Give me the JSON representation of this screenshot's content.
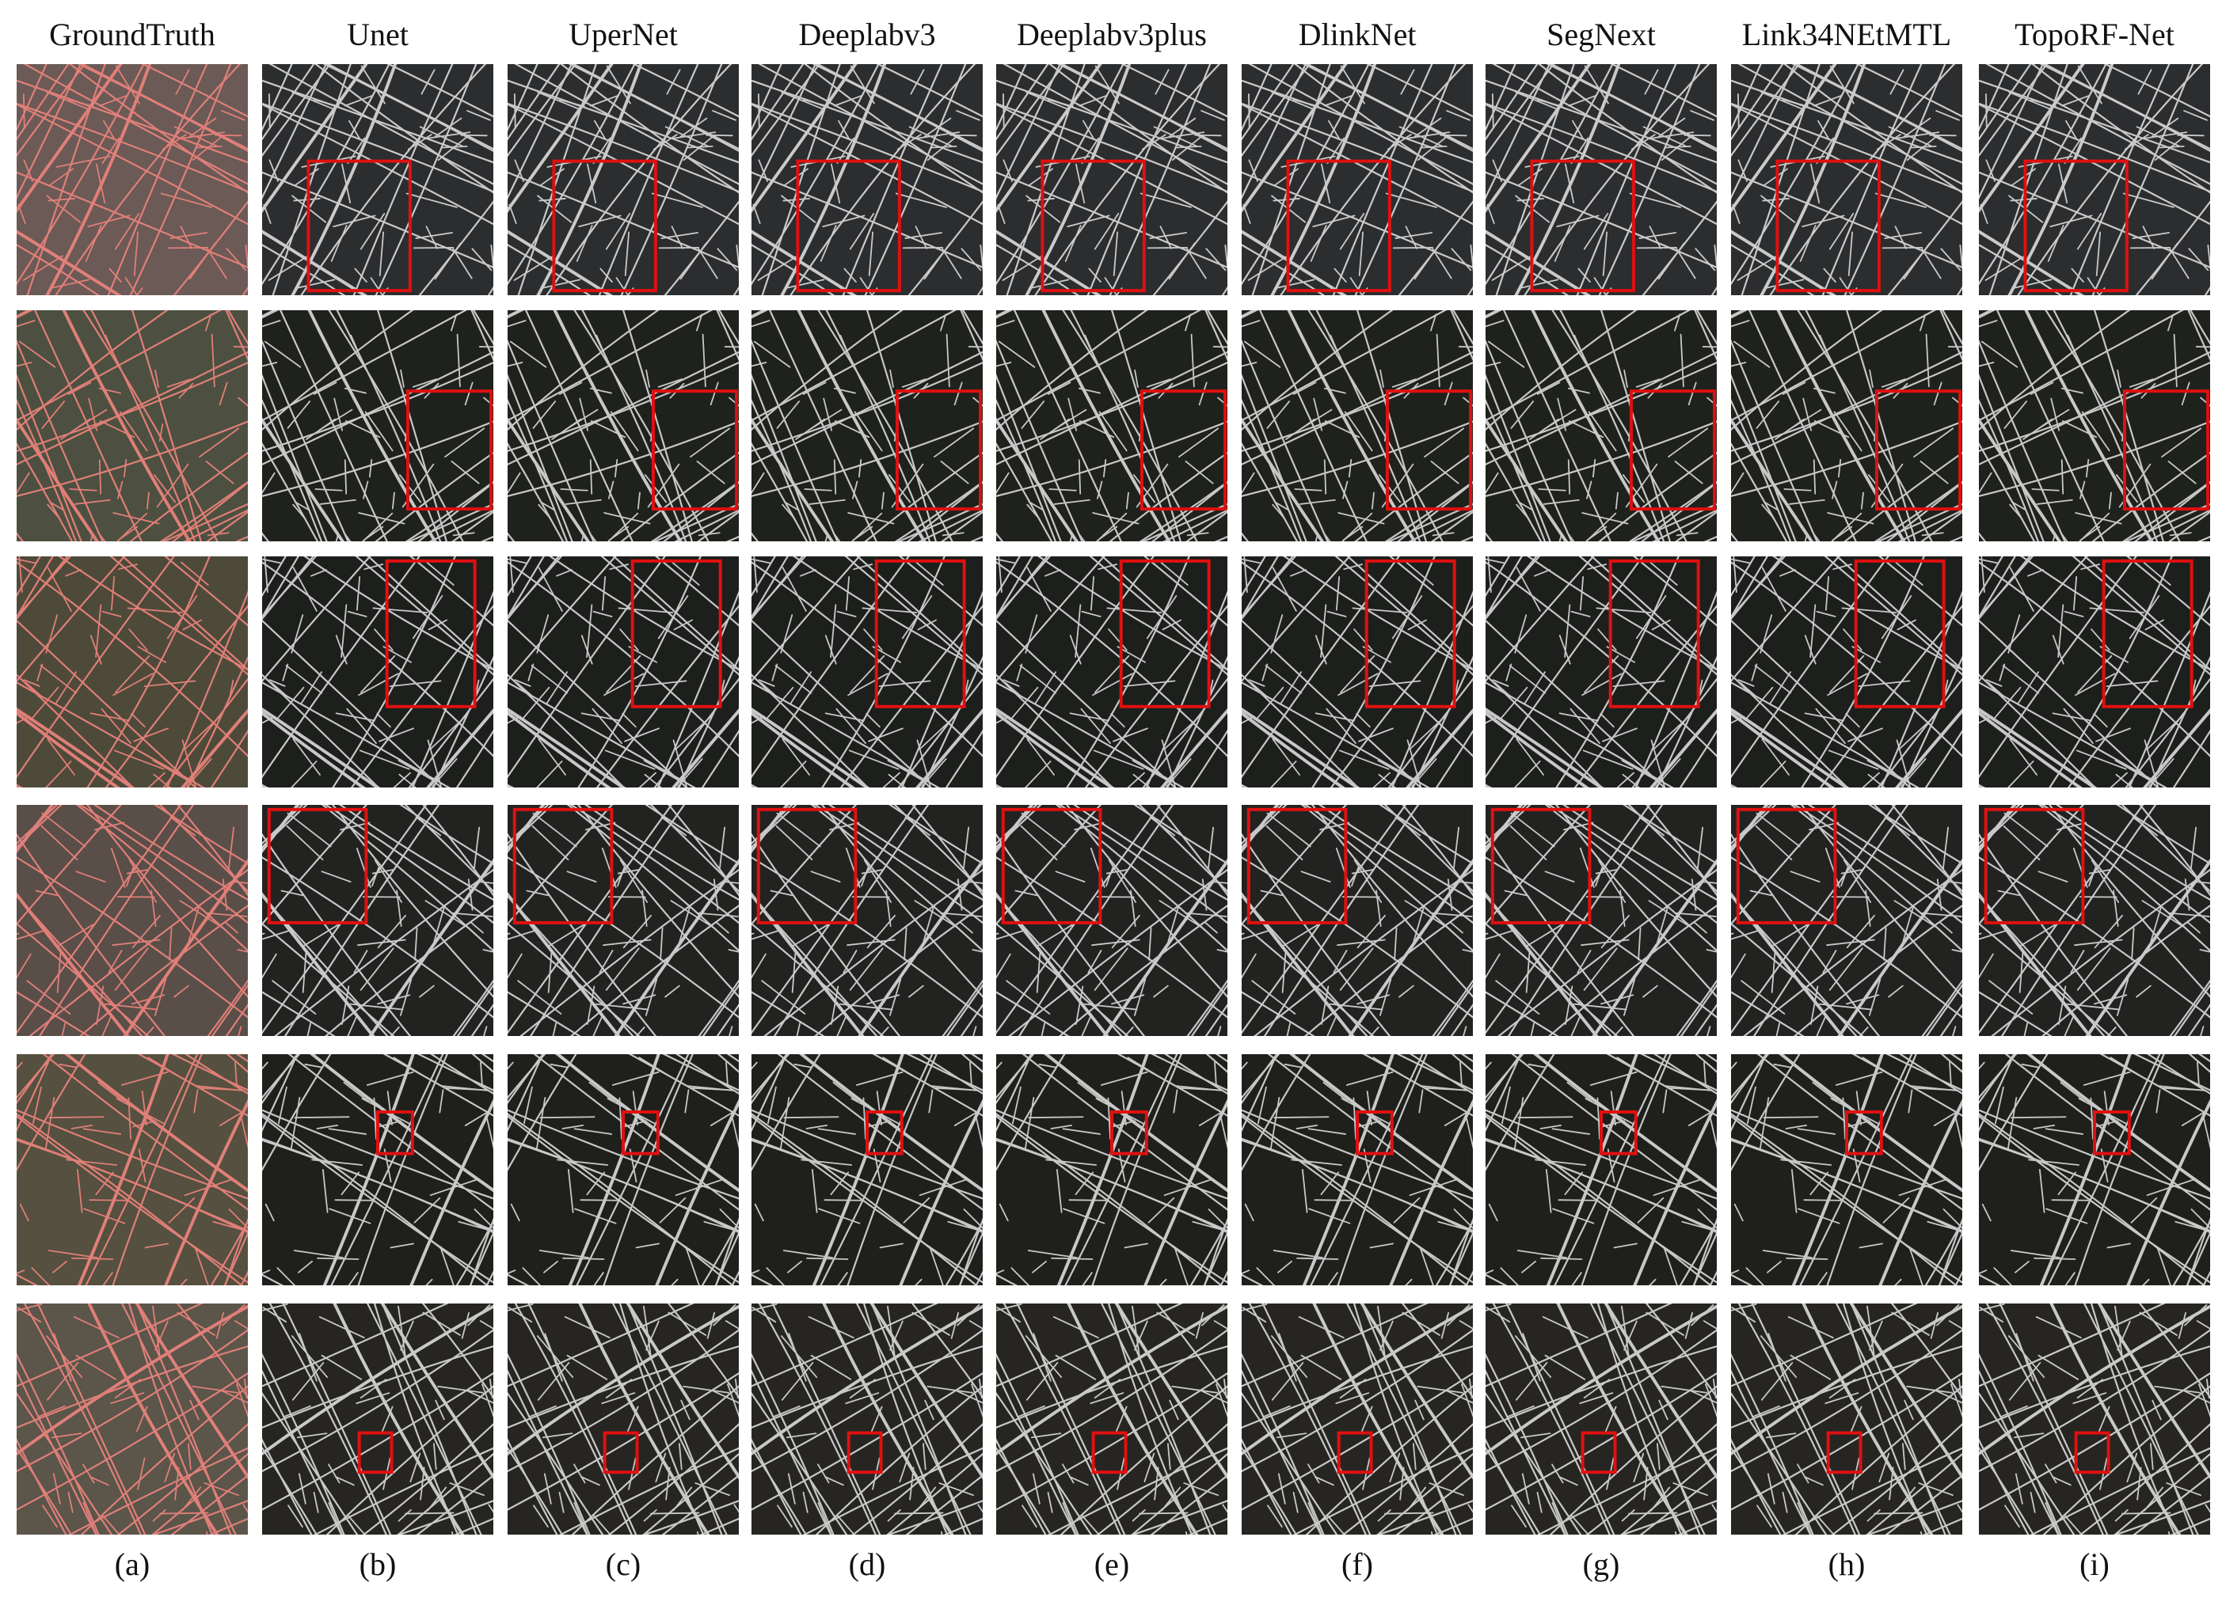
{
  "columns": [
    {
      "title": "GroundTruth",
      "label": "(a)"
    },
    {
      "title": "Unet",
      "label": "(b)"
    },
    {
      "title": "UperNet",
      "label": "(c)"
    },
    {
      "title": "Deeplabv3",
      "label": "(d)"
    },
    {
      "title": "Deeplabv3plus",
      "label": "(e)"
    },
    {
      "title": "DlinkNet",
      "label": "(f)"
    },
    {
      "title": "SegNext",
      "label": "(g)"
    },
    {
      "title": "Link34NEtMTL",
      "label": "(h)"
    },
    {
      "title": "TopoRF-Net",
      "label": "(i)"
    }
  ]
}
